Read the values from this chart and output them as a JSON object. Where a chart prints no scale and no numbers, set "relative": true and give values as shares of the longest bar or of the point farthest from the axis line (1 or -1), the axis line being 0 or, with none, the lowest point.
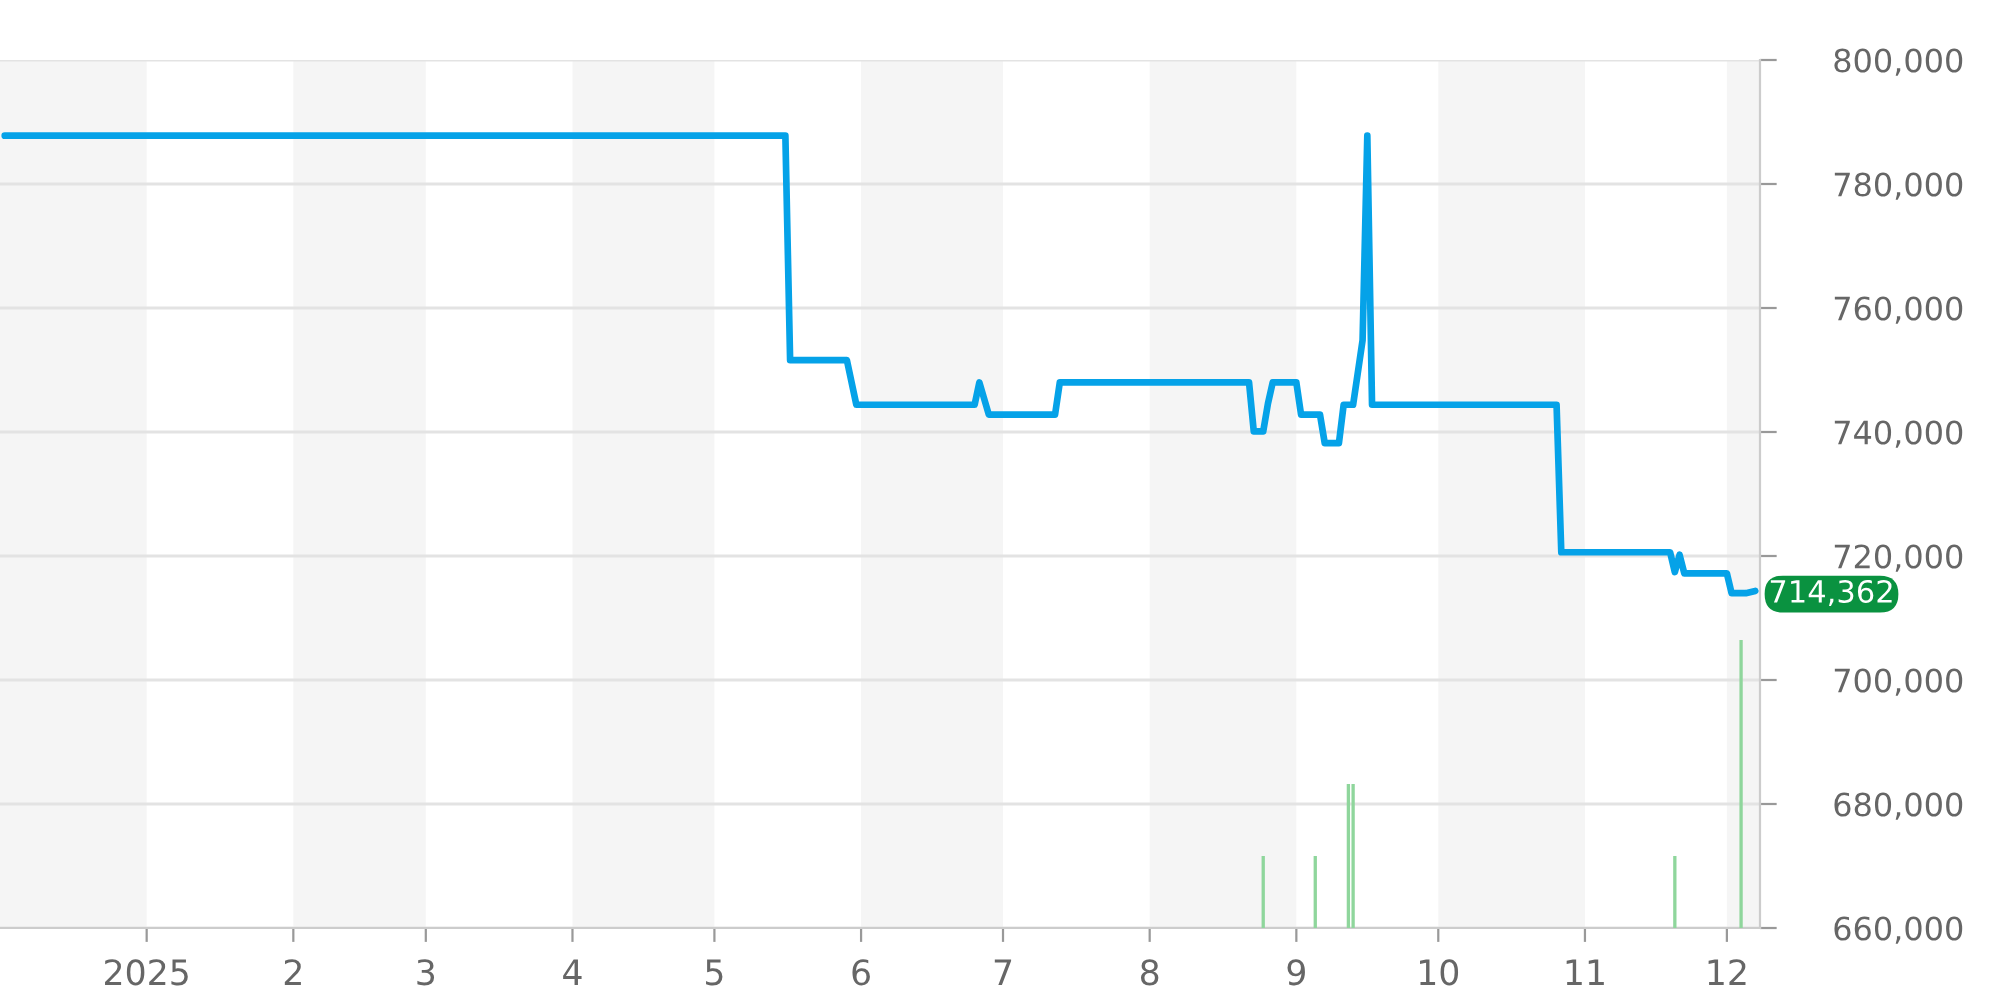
{
  "chart_data": [
    {
      "type": "line",
      "color": "#05a2e8",
      "x": [
        "2024-12-02",
        "2025-05-16",
        "2025-05-17",
        "2025-05-29",
        "2025-05-31",
        "2025-06-25",
        "2025-06-26",
        "2025-06-28",
        "2025-07-12",
        "2025-07-13",
        "2025-08-22",
        "2025-08-23",
        "2025-08-25",
        "2025-08-26",
        "2025-08-27",
        "2025-09-01",
        "2025-09-02",
        "2025-09-06",
        "2025-09-07",
        "2025-09-10",
        "2025-09-11",
        "2025-09-13",
        "2025-09-15",
        "2025-09-16",
        "2025-09-17",
        "2025-10-26",
        "2025-10-27",
        "2025-11-19",
        "2025-11-20",
        "2025-11-21",
        "2025-11-22",
        "2025-12-01",
        "2025-12-02",
        "2025-12-05",
        "2025-12-07"
      ],
      "values": [
        787800,
        787800,
        751600,
        751600,
        744400,
        744400,
        748000,
        742800,
        742800,
        748000,
        748000,
        740100,
        740100,
        744600,
        748000,
        748000,
        742800,
        742800,
        738200,
        738200,
        744400,
        744400,
        754800,
        787800,
        744400,
        744400,
        720600,
        720600,
        717400,
        720200,
        717200,
        717200,
        714000,
        714000,
        714362
      ],
      "value_labels": [
        null,
        null,
        null,
        null,
        null,
        null,
        null,
        null,
        null,
        null,
        null,
        null,
        null,
        null,
        null,
        null,
        null,
        null,
        null,
        null,
        null,
        null,
        null,
        null,
        null,
        null,
        null,
        null,
        null,
        null,
        null,
        null,
        null,
        null,
        "714,362"
      ],
      "xlim": [
        "2024-12-01",
        "2025-12-08"
      ],
      "xticks": [
        {
          "value": "2025-01-01",
          "label": "2025"
        },
        {
          "value": "2025-02-01",
          "label": "2"
        },
        {
          "value": "2025-03-01",
          "label": "3"
        },
        {
          "value": "2025-04-01",
          "label": "4"
        },
        {
          "value": "2025-05-01",
          "label": "5"
        },
        {
          "value": "2025-06-01",
          "label": "6"
        },
        {
          "value": "2025-07-01",
          "label": "7"
        },
        {
          "value": "2025-08-01",
          "label": "8"
        },
        {
          "value": "2025-09-01",
          "label": "9"
        },
        {
          "value": "2025-10-01",
          "label": "10"
        },
        {
          "value": "2025-11-01",
          "label": "11"
        },
        {
          "value": "2025-12-01",
          "label": "12"
        }
      ],
      "ylim": [
        660000,
        800000
      ],
      "yticks": [
        {
          "value": 660000,
          "label": "660,000"
        },
        {
          "value": 680000,
          "label": "680,000"
        },
        {
          "value": 700000,
          "label": "700,000"
        },
        {
          "value": 720000,
          "label": "720,000"
        },
        {
          "value": 740000,
          "label": "740,000"
        },
        {
          "value": 760000,
          "label": "760,000"
        },
        {
          "value": 780000,
          "label": "780,000"
        },
        {
          "value": 800000,
          "label": "800,000"
        }
      ],
      "grid": "y",
      "bands": [
        {
          "axis": "x",
          "from": "2024-12-01",
          "to": "2025-01-01",
          "color": "#f5f5f5"
        },
        {
          "axis": "x",
          "from": "2025-02-01",
          "to": "2025-03-01",
          "color": "#f5f5f5"
        },
        {
          "axis": "x",
          "from": "2025-04-01",
          "to": "2025-05-01",
          "color": "#f5f5f5"
        },
        {
          "axis": "x",
          "from": "2025-06-01",
          "to": "2025-07-01",
          "color": "#f5f5f5"
        },
        {
          "axis": "x",
          "from": "2025-08-01",
          "to": "2025-09-01",
          "color": "#f5f5f5"
        },
        {
          "axis": "x",
          "from": "2025-10-01",
          "to": "2025-11-01",
          "color": "#f5f5f5"
        },
        {
          "axis": "x",
          "from": "2025-12-01",
          "to": "2025-12-08",
          "color": "#f5f5f5"
        }
      ]
    },
    {
      "type": "bar",
      "relative": true,
      "color": "#8fd69c",
      "x": [
        "2025-08-25",
        "2025-09-05",
        "2025-09-12",
        "2025-09-13",
        "2025-11-20",
        "2025-12-04"
      ],
      "values": [
        0.25,
        0.25,
        0.5,
        0.5,
        0.25,
        1
      ],
      "xlim": [
        "2024-12-01",
        "2025-12-08"
      ]
    }
  ]
}
